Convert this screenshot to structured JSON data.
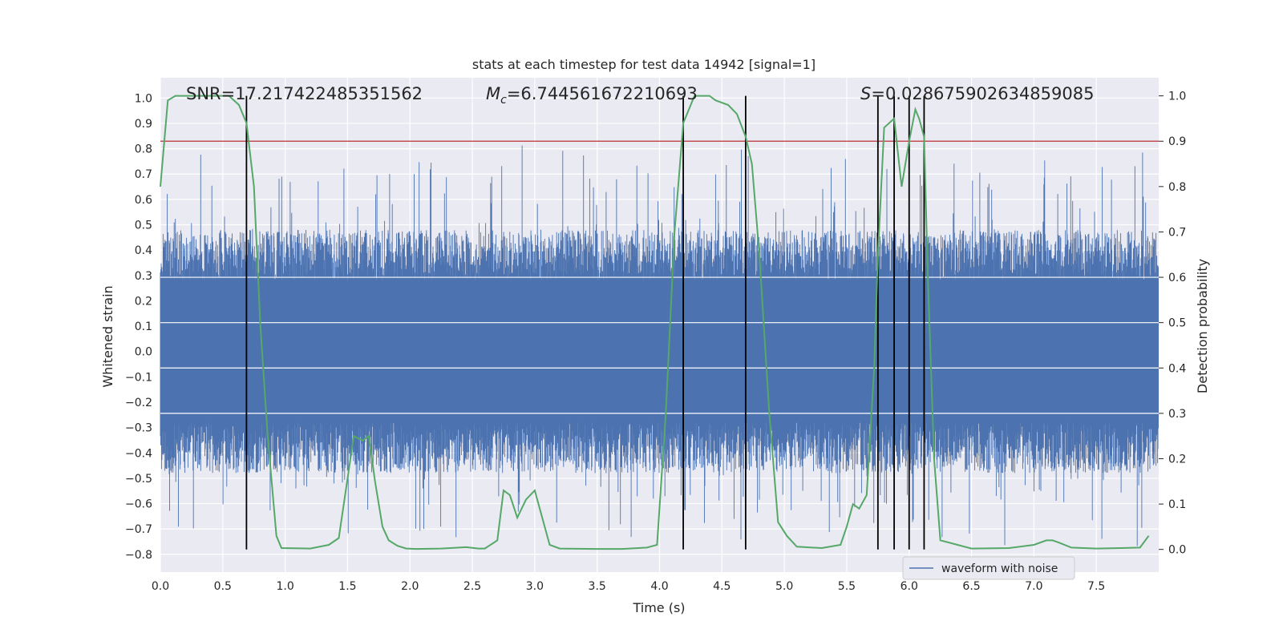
{
  "chart_data": {
    "type": "line",
    "title": "stats at each timestep for test data 14942 [signal=1]",
    "xlabel": "Time (s)",
    "ylabel_left": "Whitened strain",
    "ylabel_right": "Detection probability",
    "xlim": [
      0.0,
      8.0
    ],
    "ylim_left": [
      -0.87,
      1.08
    ],
    "ylim_right": [
      -0.05,
      1.04
    ],
    "x_ticks": [
      "0.0",
      "0.5",
      "1.0",
      "1.5",
      "2.0",
      "2.5",
      "3.0",
      "3.5",
      "4.0",
      "4.5",
      "5.0",
      "5.5",
      "6.0",
      "6.5",
      "7.0",
      "7.5"
    ],
    "y_left_ticks": [
      "−0.8",
      "−0.7",
      "−0.6",
      "−0.5",
      "−0.4",
      "−0.3",
      "−0.2",
      "−0.1",
      "0.0",
      "0.1",
      "0.2",
      "0.3",
      "0.4",
      "0.5",
      "0.6",
      "0.7",
      "0.8",
      "0.9",
      "1.0"
    ],
    "y_right_ticks": [
      "0.0",
      "0.1",
      "0.2",
      "0.3",
      "0.4",
      "0.5",
      "0.6",
      "0.7",
      "0.8",
      "0.9",
      "1.0"
    ],
    "annotations": {
      "snr": "SNR=17.217422485351562",
      "mc_symbol": "M",
      "mc_sub": "c",
      "mc_value": "=6.744561672210693",
      "s_symbol": "S",
      "s_value": "=0.028675902634859085"
    },
    "threshold": 0.9,
    "band": {
      "low": -0.26,
      "high": 0.28
    },
    "vlines": [
      0.69,
      4.19,
      4.69,
      5.75,
      5.88,
      6.0,
      6.12
    ],
    "probability": {
      "name": "Detection probability",
      "x": [
        0.0,
        0.06,
        0.12,
        0.25,
        0.4,
        0.55,
        0.63,
        0.69,
        0.75,
        0.8,
        0.86,
        0.93,
        0.97,
        1.2,
        1.35,
        1.43,
        1.55,
        1.62,
        1.67,
        1.72,
        1.78,
        1.83,
        1.9,
        1.97,
        2.05,
        2.25,
        2.45,
        2.55,
        2.6,
        2.7,
        2.75,
        2.8,
        2.86,
        2.93,
        3.0,
        3.08,
        3.12,
        3.2,
        3.5,
        3.7,
        3.9,
        3.98,
        4.05,
        4.12,
        4.19,
        4.28,
        4.35,
        4.4,
        4.45,
        4.55,
        4.62,
        4.69,
        4.74,
        4.8,
        4.88,
        4.95,
        5.02,
        5.1,
        5.3,
        5.45,
        5.5,
        5.55,
        5.6,
        5.66,
        5.72,
        5.75,
        5.8,
        5.88,
        5.94,
        6.0,
        6.05,
        6.08,
        6.12,
        6.15,
        6.2,
        6.25,
        6.5,
        6.8,
        7.0,
        7.1,
        7.15,
        7.2,
        7.3,
        7.5,
        7.7,
        7.85,
        7.92
      ],
      "y": [
        0.8,
        0.99,
        1.0,
        1.0,
        1.0,
        1.0,
        0.98,
        0.94,
        0.8,
        0.5,
        0.25,
        0.03,
        0.003,
        0.002,
        0.01,
        0.025,
        0.25,
        0.24,
        0.25,
        0.15,
        0.05,
        0.02,
        0.008,
        0.002,
        0.001,
        0.002,
        0.005,
        0.002,
        0.002,
        0.02,
        0.13,
        0.12,
        0.07,
        0.11,
        0.13,
        0.05,
        0.01,
        0.002,
        0.001,
        0.001,
        0.004,
        0.01,
        0.3,
        0.7,
        0.94,
        1.0,
        1.0,
        1.0,
        0.99,
        0.98,
        0.96,
        0.91,
        0.85,
        0.65,
        0.3,
        0.06,
        0.03,
        0.006,
        0.003,
        0.01,
        0.05,
        0.1,
        0.09,
        0.12,
        0.4,
        0.65,
        0.93,
        0.95,
        0.8,
        0.9,
        0.97,
        0.95,
        0.91,
        0.6,
        0.2,
        0.02,
        0.002,
        0.003,
        0.01,
        0.02,
        0.02,
        0.015,
        0.004,
        0.002,
        0.003,
        0.004,
        0.03
      ]
    },
    "series": [
      {
        "name": "waveform with noise",
        "color": "#4c72b0"
      },
      {
        "name": "Detection probability",
        "color": "#55a868"
      }
    ],
    "legend": {
      "label": "waveform with noise",
      "placement": "bottom-right"
    },
    "colors": {
      "background": "#eaeaf2",
      "grid": "#ffffff",
      "waveform": "#4c72b0",
      "probability": "#55a868",
      "threshold": "#c44e52",
      "vline": "#000000"
    }
  }
}
